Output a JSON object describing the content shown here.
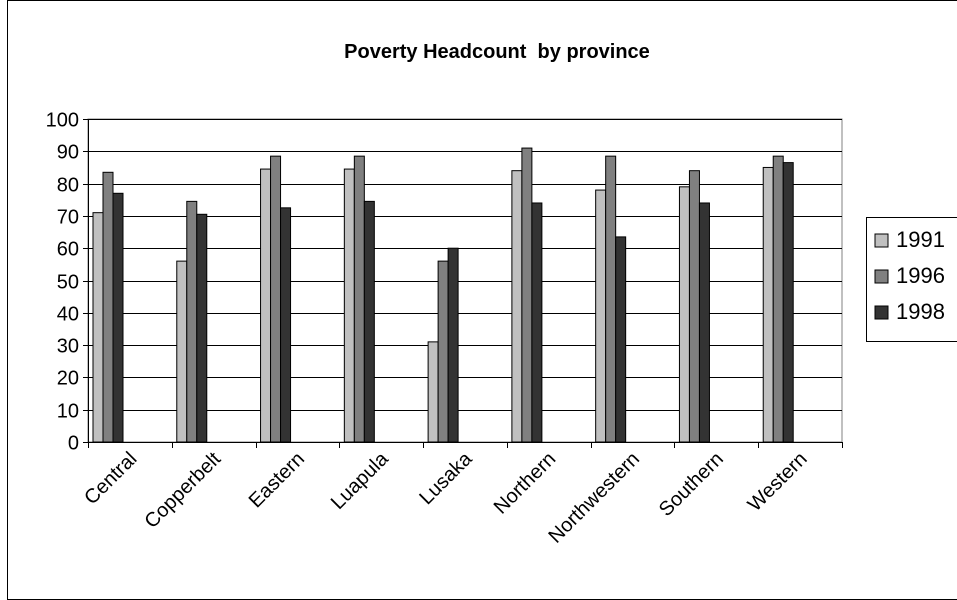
{
  "chart_data": {
    "type": "bar",
    "title": "Poverty Headcount  by province",
    "xlabel": "",
    "ylabel": "",
    "ylim": [
      0,
      100
    ],
    "yticks": [
      0,
      10,
      20,
      30,
      40,
      50,
      60,
      70,
      80,
      90,
      100
    ],
    "grid": true,
    "legend_position": "right",
    "categories": [
      "Central",
      "Copperbelt",
      "Eastern",
      "Luapula",
      "Lusaka",
      "Northern",
      "Northwestern",
      "Southern",
      "Western"
    ],
    "series": [
      {
        "name": "1991",
        "color": "#c0c0c0",
        "values": [
          71,
          56,
          84.5,
          84.5,
          31,
          84,
          78,
          79,
          85
        ]
      },
      {
        "name": "1996",
        "color": "#808080",
        "values": [
          83.5,
          74.5,
          88.5,
          88.5,
          56,
          91,
          88.5,
          84,
          88.5
        ]
      },
      {
        "name": "1998",
        "color": "#333333",
        "values": [
          77,
          70.5,
          72.5,
          74.5,
          60,
          74,
          63.5,
          74,
          86.5
        ]
      }
    ]
  }
}
